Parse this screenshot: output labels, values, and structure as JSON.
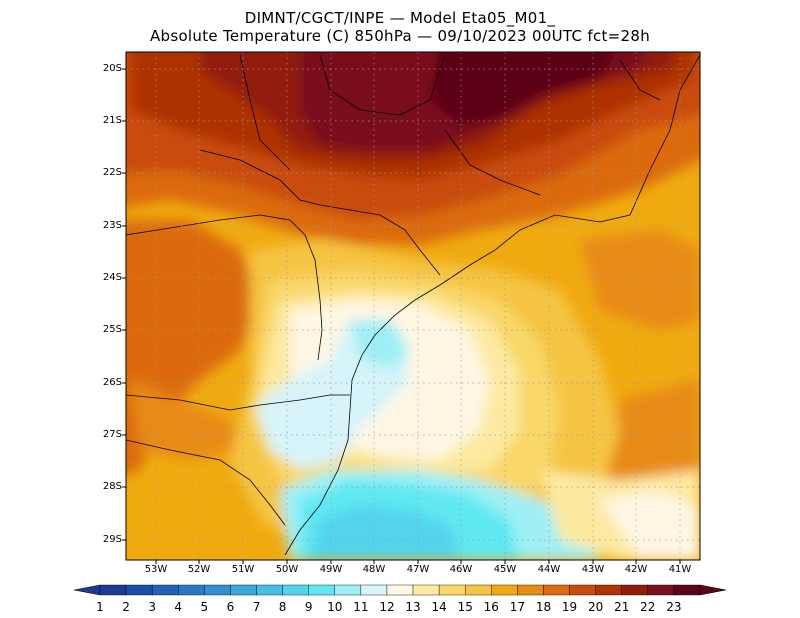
{
  "title_line1": "DIMNT/CGCT/INPE —  Model Eta05_M01_",
  "title_line2": "Absolute Temperature (C) 850hPa —  09/10/2023 00UTC fct=28h",
  "lat_labels": [
    "20S",
    "21S",
    "22S",
    "23S",
    "24S",
    "25S",
    "26S",
    "27S",
    "28S",
    "29S"
  ],
  "lon_labels": [
    "53W",
    "52W",
    "51W",
    "50W",
    "49W",
    "48W",
    "47W",
    "46W",
    "45W",
    "44W",
    "43W",
    "42W",
    "41W"
  ],
  "colorbar": {
    "labels": [
      "1",
      "2",
      "3",
      "4",
      "5",
      "6",
      "7",
      "8",
      "9",
      "10",
      "11",
      "12",
      "13",
      "14",
      "15",
      "16",
      "17",
      "18",
      "19",
      "20",
      "21",
      "22",
      "23"
    ],
    "colors": [
      "#1f3a93",
      "#1c4fa8",
      "#2262b8",
      "#2a78c6",
      "#3290d2",
      "#3ba8dc",
      "#45bfe4",
      "#52d4ec",
      "#5fe8f2",
      "#9ef0f6",
      "#d6f4fa",
      "#fff6e4",
      "#fde9a0",
      "#f9d768",
      "#f5c443",
      "#f0aa10",
      "#e88a12",
      "#dc6a0e",
      "#c94c08",
      "#ae3204",
      "#921c0a",
      "#7a0f1c",
      "#5c0518"
    ],
    "under_color": "#1f3a93",
    "over_color": "#5c0518"
  }
}
